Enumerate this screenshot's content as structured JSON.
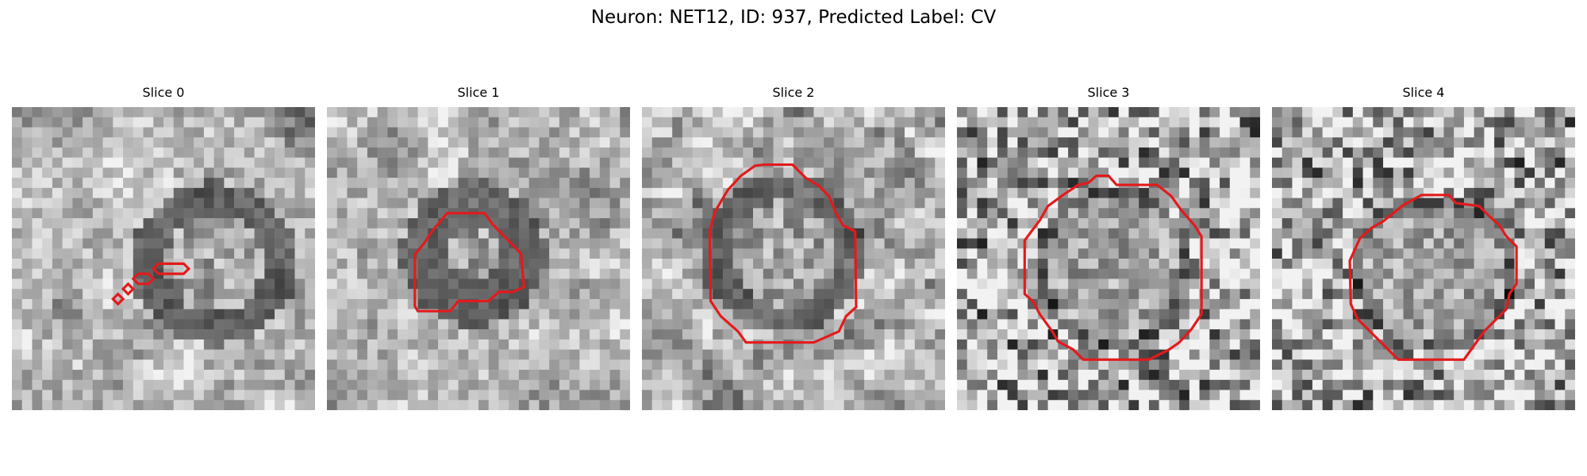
{
  "title": "Neuron: NET12, ID: 937, Predicted Label: CV",
  "contour_color": "#e31a1c",
  "colormap": "gray",
  "panels": [
    {
      "title": "Slice 0"
    },
    {
      "title": "Slice 1"
    },
    {
      "title": "Slice 2"
    },
    {
      "title": "Slice 3"
    },
    {
      "title": "Slice 4"
    }
  ]
}
